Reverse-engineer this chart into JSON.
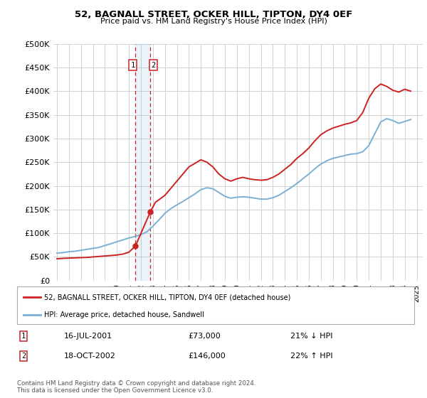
{
  "title": "52, BAGNALL STREET, OCKER HILL, TIPTON, DY4 0EF",
  "subtitle": "Price paid vs. HM Land Registry's House Price Index (HPI)",
  "legend_line1": "52, BAGNALL STREET, OCKER HILL, TIPTON, DY4 0EF (detached house)",
  "legend_line2": "HPI: Average price, detached house, Sandwell",
  "annotation1_date": "16-JUL-2001",
  "annotation1_price": "£73,000",
  "annotation1_hpi": "21% ↓ HPI",
  "annotation2_date": "18-OCT-2002",
  "annotation2_price": "£146,000",
  "annotation2_hpi": "22% ↑ HPI",
  "copyright": "Contains HM Land Registry data © Crown copyright and database right 2024.\nThis data is licensed under the Open Government Licence v3.0.",
  "hpi_color": "#7bafd4",
  "price_color": "#cc2222",
  "marker1_x": 2001.54,
  "marker2_x": 2002.8,
  "marker1_y": 73000,
  "marker2_y": 146000,
  "ylim": [
    0,
    500000
  ],
  "xlim_start": 1994.7,
  "xlim_end": 2025.5,
  "hpi_years": [
    1995.0,
    1995.5,
    1996.0,
    1996.5,
    1997.0,
    1997.5,
    1998.0,
    1998.5,
    1999.0,
    1999.5,
    2000.0,
    2000.5,
    2001.0,
    2001.5,
    2002.0,
    2002.5,
    2003.0,
    2003.5,
    2004.0,
    2004.5,
    2005.0,
    2005.5,
    2006.0,
    2006.5,
    2007.0,
    2007.5,
    2008.0,
    2008.5,
    2009.0,
    2009.5,
    2010.0,
    2010.5,
    2011.0,
    2011.5,
    2012.0,
    2012.5,
    2013.0,
    2013.5,
    2014.0,
    2014.5,
    2015.0,
    2015.5,
    2016.0,
    2016.5,
    2017.0,
    2017.5,
    2018.0,
    2018.5,
    2019.0,
    2019.5,
    2020.0,
    2020.5,
    2021.0,
    2021.5,
    2022.0,
    2022.5,
    2023.0,
    2023.5,
    2024.0,
    2024.5
  ],
  "hpi_values": [
    58000,
    59000,
    61000,
    62000,
    64000,
    66000,
    68000,
    70000,
    74000,
    78000,
    82000,
    86000,
    90000,
    93000,
    97000,
    103000,
    115000,
    128000,
    142000,
    152000,
    160000,
    167000,
    175000,
    183000,
    192000,
    196000,
    194000,
    186000,
    178000,
    174000,
    176000,
    177000,
    176000,
    174000,
    172000,
    172000,
    175000,
    180000,
    188000,
    196000,
    205000,
    215000,
    225000,
    236000,
    246000,
    253000,
    258000,
    261000,
    264000,
    267000,
    268000,
    272000,
    285000,
    310000,
    335000,
    342000,
    338000,
    332000,
    336000,
    340000
  ],
  "price_years": [
    1995.0,
    1995.5,
    1996.0,
    1996.5,
    1997.0,
    1997.5,
    1998.0,
    1998.5,
    1999.0,
    1999.5,
    2000.0,
    2000.5,
    2001.0,
    2001.54,
    2002.8,
    2003.2,
    2004.0,
    2005.0,
    2006.0,
    2007.0,
    2007.5,
    2008.0,
    2008.5,
    2009.0,
    2009.5,
    2010.0,
    2010.5,
    2011.0,
    2011.5,
    2012.0,
    2012.5,
    2013.0,
    2013.5,
    2014.0,
    2014.5,
    2015.0,
    2015.5,
    2016.0,
    2016.5,
    2017.0,
    2017.5,
    2018.0,
    2018.5,
    2019.0,
    2019.5,
    2020.0,
    2020.5,
    2021.0,
    2021.5,
    2022.0,
    2022.5,
    2023.0,
    2023.5,
    2024.0,
    2024.5
  ],
  "price_values": [
    46000,
    47000,
    47500,
    48000,
    48500,
    49000,
    50000,
    51000,
    52000,
    53000,
    54000,
    56000,
    60000,
    73000,
    146000,
    165000,
    180000,
    210000,
    240000,
    255000,
    250000,
    240000,
    225000,
    215000,
    210000,
    215000,
    218000,
    215000,
    213000,
    212000,
    213000,
    218000,
    225000,
    235000,
    245000,
    258000,
    268000,
    280000,
    295000,
    308000,
    316000,
    322000,
    326000,
    330000,
    333000,
    338000,
    355000,
    385000,
    405000,
    415000,
    410000,
    402000,
    398000,
    404000,
    400000
  ],
  "ytick_values": [
    0,
    50000,
    100000,
    150000,
    200000,
    250000,
    300000,
    350000,
    400000,
    450000,
    500000
  ],
  "ytick_labels": [
    "£0",
    "£50K",
    "£100K",
    "£150K",
    "£200K",
    "£250K",
    "£300K",
    "£350K",
    "£400K",
    "£450K",
    "£500K"
  ]
}
